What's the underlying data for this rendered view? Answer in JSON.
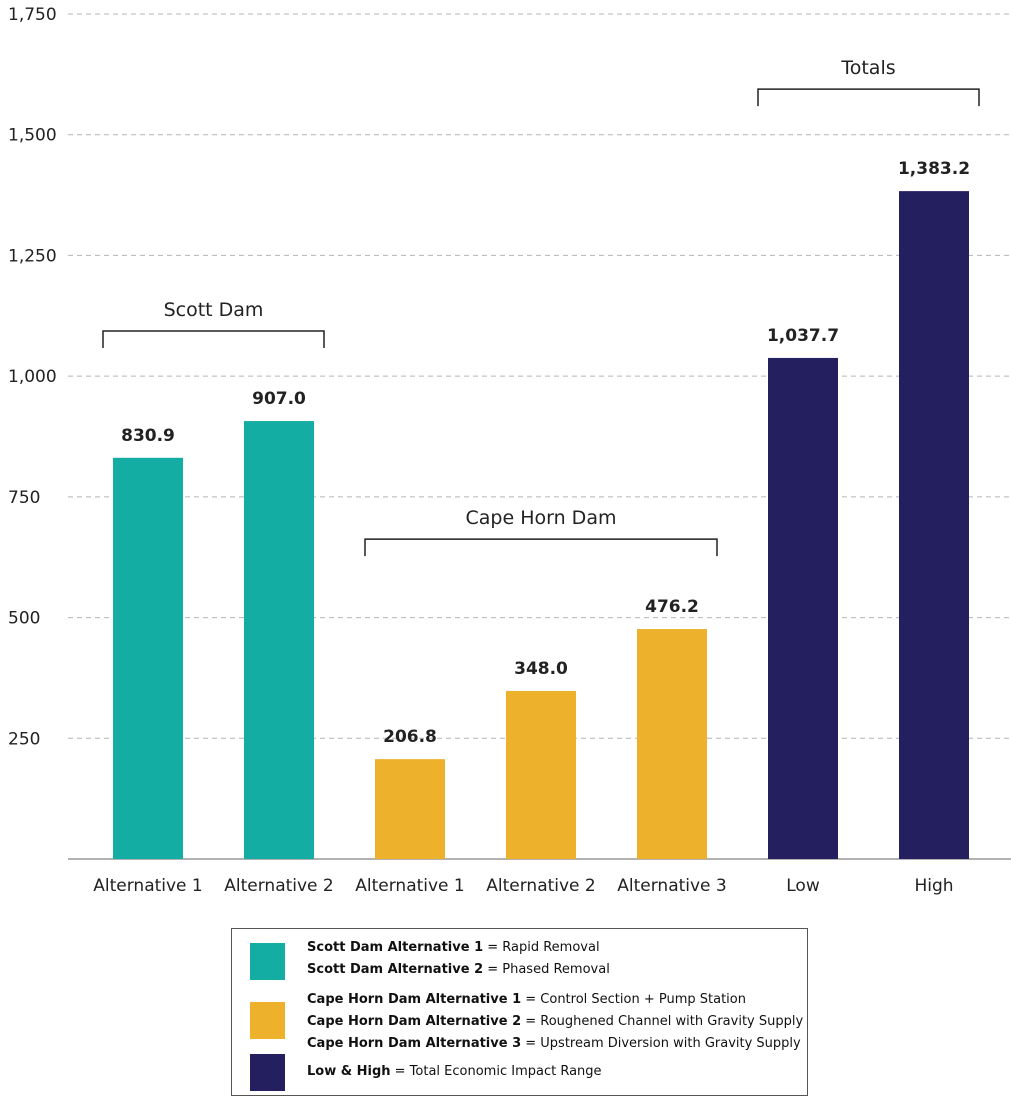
{
  "chart_data": {
    "type": "bar",
    "categories": [
      "Alternative 1",
      "Alternative 2",
      "Alternative 1",
      "Alternative 2",
      "Alternative 3",
      "Low",
      "High"
    ],
    "values": [
      830.9,
      907.0,
      206.8,
      348.0,
      476.2,
      1037.7,
      1383.2
    ],
    "value_labels": [
      "830.9",
      "907.0",
      "206.8",
      "348.0",
      "476.2",
      "1,037.7",
      "1,383.2"
    ],
    "bar_colors": [
      "#14ADA4",
      "#14ADA4",
      "#EDB12C",
      "#EDB12C",
      "#EDB12C",
      "#242060",
      "#242060"
    ],
    "ylim": [
      0,
      1750
    ],
    "yticks": [
      250,
      500,
      750,
      1000,
      1250,
      1500,
      1750
    ],
    "ytick_labels": [
      "250",
      "500",
      "750",
      "1,000",
      "1,250",
      "1,500",
      "1,750"
    ],
    "grid": true,
    "groups": [
      {
        "label": "Scott Dam",
        "start": 0,
        "end": 1
      },
      {
        "label": "Cape Horn Dam",
        "start": 2,
        "end": 4
      },
      {
        "label": "Totals",
        "start": 5,
        "end": 6
      }
    ],
    "title": "",
    "xlabel": "",
    "ylabel": ""
  },
  "legend": [
    {
      "color": "#14ADA4",
      "entries": [
        {
          "bold": "Scott Dam Alternative 1",
          "text": " = Rapid Removal"
        },
        {
          "bold": "Scott Dam Alternative 2",
          "text": " = Phased Removal"
        }
      ]
    },
    {
      "color": "#EDB12C",
      "entries": [
        {
          "bold": "Cape Horn Dam Alternative 1",
          "text": " = Control Section + Pump Station"
        },
        {
          "bold": "Cape Horn Dam Alternative 2",
          "text": " = Roughened Channel with Gravity Supply"
        },
        {
          "bold": "Cape Horn Dam Alternative 3",
          "text": " = Upstream Diversion with Gravity Supply"
        }
      ]
    },
    {
      "color": "#242060",
      "entries": [
        {
          "bold": "Low & High",
          "text": " = Total Economic Impact Range"
        }
      ]
    }
  ]
}
